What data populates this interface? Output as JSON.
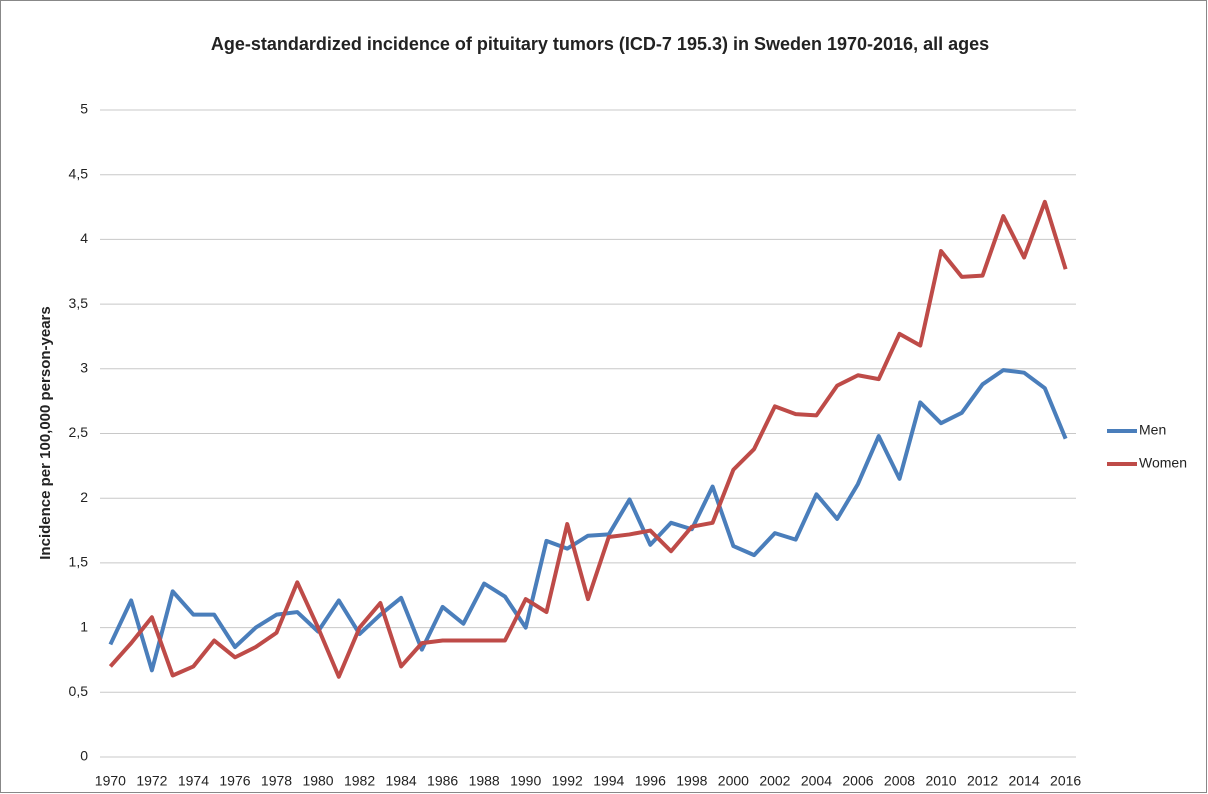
{
  "chart_data": {
    "type": "line",
    "title": "Age-standardized incidence of pituitary tumors (ICD-7 195.3) in Sweden 1970-2016, all ages",
    "y_label": "Incidence per 100,000 person-years",
    "categories": [
      "1970",
      null,
      "1972",
      null,
      "1974",
      null,
      "1976",
      null,
      "1978",
      null,
      "1980",
      null,
      "1982",
      null,
      "1984",
      null,
      "1986",
      null,
      "1988",
      null,
      "1990",
      null,
      "1992",
      null,
      "1994",
      null,
      "1996",
      null,
      "1998",
      null,
      "2000",
      null,
      "2002",
      null,
      "2004",
      null,
      "2006",
      null,
      "2008",
      null,
      "2010",
      null,
      "2012",
      null,
      "2014",
      null,
      "2016"
    ],
    "series": [
      {
        "name": "Men",
        "color": "#4a7ebb",
        "values": [
          0.87,
          1.21,
          0.67,
          1.28,
          1.1,
          1.1,
          0.85,
          1.0,
          1.1,
          1.12,
          0.97,
          1.21,
          0.95,
          1.1,
          1.23,
          0.83,
          1.16,
          1.03,
          1.34,
          1.24,
          1.0,
          1.67,
          1.61,
          1.71,
          1.72,
          1.99,
          1.64,
          1.81,
          1.76,
          2.09,
          1.63,
          1.56,
          1.73,
          1.68,
          2.03,
          1.84,
          2.11,
          2.48,
          2.15,
          2.74,
          2.58,
          2.66,
          2.88,
          2.99,
          2.97,
          2.85,
          2.46
        ]
      },
      {
        "name": "Women",
        "color": "#be4b48",
        "values": [
          0.7,
          0.88,
          1.08,
          0.63,
          0.7,
          0.9,
          0.77,
          0.85,
          0.96,
          1.35,
          1.0,
          0.62,
          1.0,
          1.19,
          0.7,
          0.88,
          0.9,
          0.9,
          0.9,
          0.9,
          1.22,
          1.12,
          1.8,
          1.22,
          1.7,
          1.72,
          1.75,
          1.59,
          1.78,
          1.81,
          2.22,
          2.38,
          2.71,
          2.65,
          2.64,
          2.87,
          2.95,
          2.92,
          3.27,
          3.18,
          3.91,
          3.71,
          3.72,
          4.18,
          3.86,
          4.29,
          3.77
        ]
      }
    ],
    "ylim": [
      0,
      5
    ],
    "yticks": [
      0,
      {
        "value": 0.5,
        "label": "0,5"
      },
      1,
      {
        "value": 1.5,
        "label": "1,5"
      },
      2,
      {
        "value": 2.5,
        "label": "2,5"
      },
      3,
      {
        "value": 3.5,
        "label": "3,5"
      },
      4,
      {
        "value": 4.5,
        "label": "4,5"
      },
      5
    ],
    "grid": true,
    "legend": "right"
  }
}
